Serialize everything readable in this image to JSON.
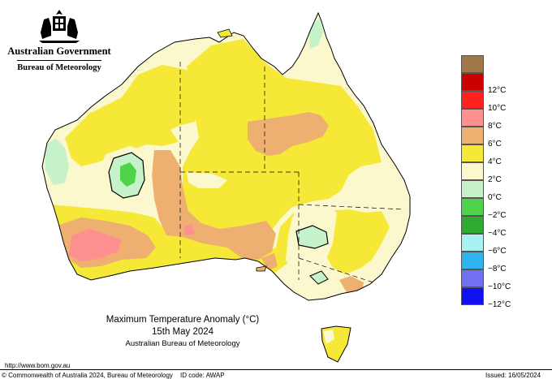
{
  "header": {
    "government": "Australian Government",
    "agency": "Bureau of Meteorology"
  },
  "map": {
    "title": "Maximum Temperature Anomaly (°C)",
    "date": "15th May 2024",
    "credit": "Australian Bureau of Meteorology"
  },
  "legend": {
    "entries": [
      {
        "label": "",
        "color": "#a07848"
      },
      {
        "label": "12°C",
        "color": "#cc0000"
      },
      {
        "label": "10°C",
        "color": "#ff2020"
      },
      {
        "label": "8°C",
        "color": "#ff9090"
      },
      {
        "label": "6°C",
        "color": "#eeb070"
      },
      {
        "label": "4°C",
        "color": "#f6e836"
      },
      {
        "label": "2°C",
        "color": "#fbf8cd"
      },
      {
        "label": "0°C",
        "color": "#c6f2c9"
      },
      {
        "label": "−2°C",
        "color": "#4fd34a"
      },
      {
        "label": "−4°C",
        "color": "#30aa30"
      },
      {
        "label": "−6°C",
        "color": "#a8f2f4"
      },
      {
        "label": "−8°C",
        "color": "#30b4f0"
      },
      {
        "label": "−10°C",
        "color": "#7070f0"
      },
      {
        "label": "−12°C",
        "color": "#1010f0"
      }
    ]
  },
  "footer": {
    "url": "http://www.bom.gov.au",
    "copyright": "© Commonwealth of Australia 2024, Bureau of Meteorology",
    "id_code": "ID code: AWAP",
    "issued": "Issued: 16/05/2024"
  }
}
